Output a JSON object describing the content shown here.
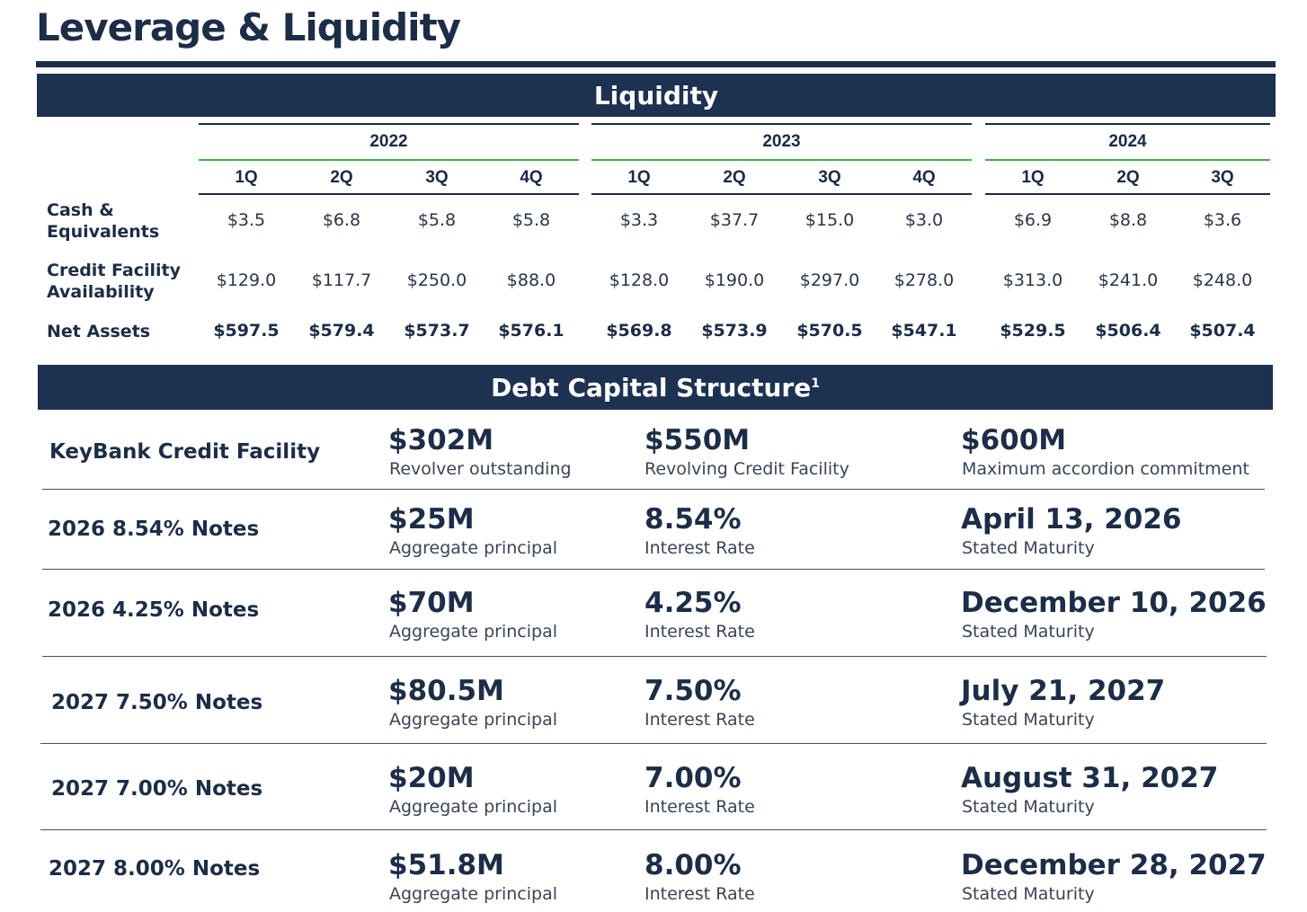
{
  "title": "Leverage & Liquidity",
  "liquidity": {
    "heading": "Liquidity",
    "years": [
      "2022",
      "2023",
      "2024"
    ],
    "quarters": [
      [
        "1Q",
        "2Q",
        "3Q",
        "4Q"
      ],
      [
        "1Q",
        "2Q",
        "3Q",
        "4Q"
      ],
      [
        "1Q",
        "2Q",
        "3Q"
      ]
    ],
    "rows": [
      {
        "label": "Cash &\nEquivalents",
        "values": [
          "$3.5",
          "$6.8",
          "$5.8",
          "$5.8",
          "$3.3",
          "$37.7",
          "$15.0",
          "$3.0",
          "$6.9",
          "$8.8",
          "$3.6"
        ]
      },
      {
        "label": "Credit Facility\nAvailability",
        "values": [
          "$129.0",
          "$117.7",
          "$250.0",
          "$88.0",
          "$128.0",
          "$190.0",
          "$297.0",
          "$278.0",
          "$313.0",
          "$241.0",
          "$248.0"
        ]
      },
      {
        "label": "Net Assets",
        "values": [
          "$597.5",
          "$579.4",
          "$573.7",
          "$576.1",
          "$569.8",
          "$573.9",
          "$570.5",
          "$547.1",
          "$529.5",
          "$506.4",
          "$507.4"
        ]
      }
    ]
  },
  "debt": {
    "heading": "Debt Capital Structure",
    "heading_sup": "1",
    "rows": [
      {
        "label": "KeyBank Credit Facility",
        "c1_value": "$302M",
        "c1_sub": "Revolver outstanding",
        "c2_value": "$550M",
        "c2_sub": "Revolving Credit Facility",
        "c3_value": "$600M",
        "c3_sub": "Maximum accordion commitment"
      },
      {
        "label": "2026 8.54% Notes",
        "c1_value": "$25M",
        "c1_sub": "Aggregate principal",
        "c2_value": "8.54%",
        "c2_sub": "Interest Rate",
        "c3_value": "April 13, 2026",
        "c3_sub": "Stated Maturity"
      },
      {
        "label": "2026 4.25% Notes",
        "c1_value": "$70M",
        "c1_sub": "Aggregate principal",
        "c2_value": "4.25%",
        "c2_sub": "Interest Rate",
        "c3_value": "December 10, 2026",
        "c3_sub": "Stated Maturity"
      },
      {
        "label": "2027 7.50% Notes",
        "c1_value": "$80.5M",
        "c1_sub": "Aggregate principal",
        "c2_value": "7.50%",
        "c2_sub": "Interest Rate",
        "c3_value": "July 21, 2027",
        "c3_sub": "Stated Maturity"
      },
      {
        "label": "2027 7.00% Notes",
        "c1_value": "$20M",
        "c1_sub": "Aggregate principal",
        "c2_value": "7.00%",
        "c2_sub": "Interest Rate",
        "c3_value": "August 31, 2027",
        "c3_sub": "Stated Maturity"
      },
      {
        "label": "2027 8.00% Notes",
        "c1_value": "$51.8M",
        "c1_sub": "Aggregate principal",
        "c2_value": "8.00%",
        "c2_sub": "Interest Rate",
        "c3_value": "December 28, 2027",
        "c3_sub": "Stated Maturity"
      }
    ]
  }
}
